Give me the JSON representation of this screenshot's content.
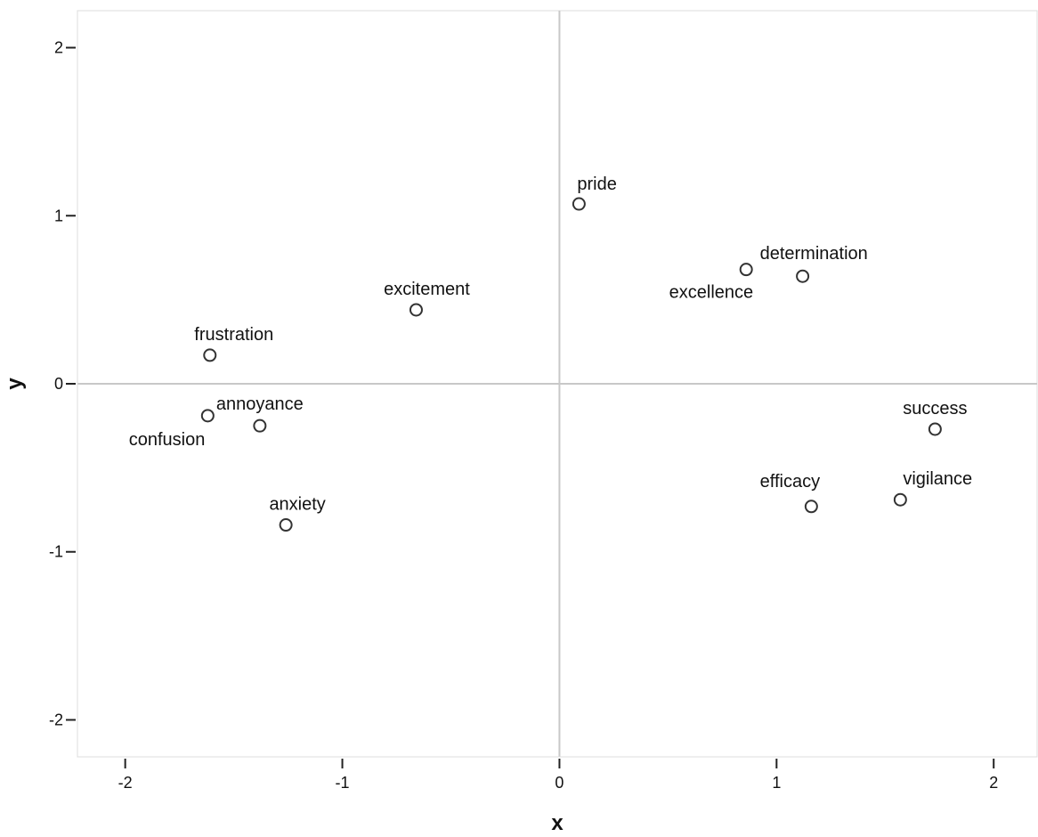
{
  "chart_data": {
    "type": "scatter",
    "xlabel": "x",
    "ylabel": "y",
    "xlim": [
      -2.22,
      2.2
    ],
    "ylim": [
      -2.22,
      2.22
    ],
    "x_ticks": [
      -2,
      -1,
      0,
      1,
      2
    ],
    "y_ticks": [
      -2,
      -1,
      0,
      1,
      2
    ],
    "x_tick_labels": [
      "-2",
      "-1",
      "0",
      "1",
      "2"
    ],
    "y_tick_labels": [
      "-2",
      "-1",
      "0",
      "1",
      "2"
    ],
    "grid": false,
    "reference_lines": {
      "x": 0,
      "y": 0
    },
    "marker": "hollow-circle",
    "points": [
      {
        "label": "pride",
        "x": 0.09,
        "y": 1.07
      },
      {
        "label": "determination",
        "x": 1.12,
        "y": 0.64
      },
      {
        "label": "excellence",
        "x": 0.86,
        "y": 0.68
      },
      {
        "label": "excitement",
        "x": -0.66,
        "y": 0.44
      },
      {
        "label": "frustration",
        "x": -1.61,
        "y": 0.17
      },
      {
        "label": "annoyance",
        "x": -1.38,
        "y": -0.25
      },
      {
        "label": "confusion",
        "x": -1.62,
        "y": -0.19
      },
      {
        "label": "anxiety",
        "x": -1.26,
        "y": -0.84
      },
      {
        "label": "success",
        "x": 1.73,
        "y": -0.27
      },
      {
        "label": "efficacy",
        "x": 1.16,
        "y": -0.73
      },
      {
        "label": "vigilance",
        "x": 1.57,
        "y": -0.69
      }
    ]
  },
  "colors": {
    "axis": "#222222",
    "frame": "#dddddd",
    "reference_line": "#c8c8c8",
    "marker_stroke": "#333333",
    "marker_fill": "#ffffff",
    "text": "#111111"
  }
}
